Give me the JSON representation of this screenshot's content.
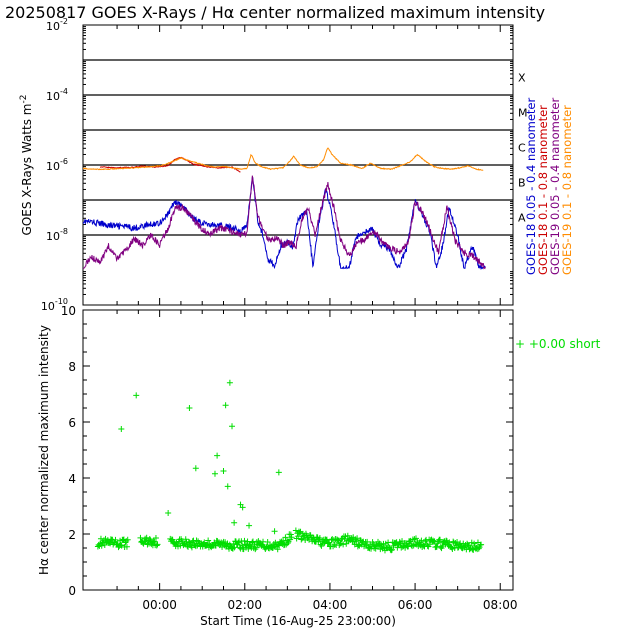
{
  "title": "20250817 GOES X-Rays / Hα center normalized maximum intensity",
  "chart_data": [
    {
      "type": "line",
      "ylabel": "GOES X-Rays Watts m",
      "ylabel_sup": "-2",
      "yscale": "log",
      "ylim": [
        1e-10,
        0.01
      ],
      "xlim": [
        -0.8,
        9.3
      ],
      "ytick_labels": [
        {
          "base": "10",
          "exp": "-10",
          "v": -10
        },
        {
          "base": "10",
          "exp": "-8",
          "v": -8
        },
        {
          "base": "10",
          "exp": "-6",
          "v": -6
        },
        {
          "base": "10",
          "exp": "-4",
          "v": -4
        },
        {
          "base": "10",
          "exp": "-2",
          "v": -2
        }
      ],
      "class_lines": [
        -8,
        -7,
        -6,
        -5,
        -4,
        -3
      ],
      "class_labels": [
        {
          "label": "A",
          "v": -7.5
        },
        {
          "label": "B",
          "v": -6.5
        },
        {
          "label": "C",
          "v": -5.5
        },
        {
          "label": "M",
          "v": -4.5
        },
        {
          "label": "X",
          "v": -3.5
        }
      ],
      "series": [
        {
          "name": "GOES-18 0.05 - 0.4 nanometer",
          "color": "#0000cc",
          "x": [
            -0.8,
            -0.5,
            -0.2,
            0.1,
            0.4,
            0.7,
            1.0,
            1.2,
            1.35,
            1.55,
            1.8,
            2.0,
            2.2,
            2.45,
            2.7,
            2.9,
            3.05,
            3.18,
            3.3,
            3.45,
            3.55,
            3.7,
            3.85,
            4.0,
            4.12,
            4.25,
            4.45,
            4.6,
            4.75,
            4.9,
            5.05,
            5.25,
            5.45,
            5.6,
            5.8,
            6.0,
            6.2,
            6.4,
            6.6,
            6.8,
            7.0,
            7.15,
            7.35,
            7.5,
            7.65,
            7.8,
            8.0,
            8.15,
            8.35,
            8.5,
            8.65
          ],
          "logy": [
            -7.6,
            -7.65,
            -7.72,
            -7.75,
            -7.8,
            -7.72,
            -7.65,
            -7.4,
            -7.05,
            -7.2,
            -7.55,
            -7.65,
            -7.7,
            -7.75,
            -7.78,
            -7.88,
            -7.75,
            -6.35,
            -7.55,
            -8.1,
            -8.7,
            -8.9,
            -8.3,
            -8.2,
            -8.35,
            -7.55,
            -7.3,
            -8.9,
            -7.6,
            -6.7,
            -7.4,
            -8.95,
            -8.95,
            -8.1,
            -7.9,
            -7.85,
            -8.3,
            -8.4,
            -8.95,
            -8.4,
            -7.0,
            -7.4,
            -7.9,
            -8.95,
            -8.3,
            -7.2,
            -8.0,
            -8.95,
            -8.3,
            -8.9,
            -8.95
          ]
        },
        {
          "name": "GOES-18 0.1 - 0.8 nanometer",
          "color": "#cc0000",
          "x": [
            -0.4,
            -0.2,
            0.0,
            0.3,
            0.6,
            0.9,
            1.2,
            1.35,
            1.5,
            1.65,
            1.8,
            2.1,
            2.4,
            2.7,
            2.9
          ],
          "logy": [
            -6.05,
            -6.07,
            -6.08,
            -6.07,
            -6.03,
            -6.06,
            -6.02,
            -5.85,
            -5.78,
            -5.88,
            -5.98,
            -6.05,
            -6.08,
            -6.06,
            -6.2
          ]
        },
        {
          "name": "GOES-19 0.05 - 0.4 nanometer",
          "color": "#800080",
          "x": [
            -0.8,
            -0.6,
            -0.4,
            -0.2,
            0.0,
            0.2,
            0.4,
            0.6,
            0.8,
            1.0,
            1.2,
            1.35,
            1.55,
            1.8,
            2.0,
            2.2,
            2.45,
            2.7,
            2.9,
            3.05,
            3.18,
            3.3,
            3.45,
            3.6,
            3.75,
            3.9,
            4.05,
            4.2,
            4.35,
            4.5,
            4.65,
            4.8,
            4.95,
            5.1,
            5.25,
            5.45,
            5.65,
            5.85,
            6.05,
            6.25,
            6.45,
            6.65,
            6.85,
            7.0,
            7.15,
            7.35,
            7.55,
            7.75,
            7.95,
            8.15,
            8.35,
            8.55,
            8.65
          ],
          "logy": [
            -8.95,
            -8.6,
            -8.8,
            -8.3,
            -8.7,
            -8.45,
            -8.1,
            -8.3,
            -8.0,
            -8.3,
            -7.8,
            -7.25,
            -7.2,
            -7.55,
            -7.85,
            -7.95,
            -7.8,
            -7.9,
            -8.0,
            -7.95,
            -6.3,
            -7.45,
            -7.95,
            -8.15,
            -8.05,
            -8.3,
            -8.2,
            -8.35,
            -7.5,
            -7.25,
            -8.0,
            -7.2,
            -6.55,
            -7.25,
            -8.15,
            -8.6,
            -8.2,
            -8.1,
            -7.9,
            -8.25,
            -8.4,
            -8.5,
            -8.2,
            -7.05,
            -7.3,
            -7.85,
            -8.5,
            -7.2,
            -8.2,
            -8.5,
            -8.6,
            -8.8,
            -8.9
          ]
        },
        {
          "name": "GOES-19 0.1 - 0.8 nanometer",
          "color": "#ff8c00",
          "x": [
            -0.8,
            -0.5,
            -0.2,
            0.1,
            0.4,
            0.8,
            1.1,
            1.3,
            1.5,
            1.7,
            1.9,
            2.1,
            2.3,
            2.5,
            2.7,
            2.9,
            3.05,
            3.15,
            3.25,
            3.4,
            3.6,
            3.75,
            3.9,
            4.05,
            4.15,
            4.3,
            4.5,
            4.7,
            4.85,
            4.95,
            5.05,
            5.25,
            5.5,
            5.75,
            5.95,
            6.2,
            6.45,
            6.7,
            6.9,
            7.05,
            7.25,
            7.45,
            7.65,
            7.85,
            8.05,
            8.25,
            8.45,
            8.6
          ],
          "logy": [
            -6.1,
            -6.12,
            -6.12,
            -6.1,
            -6.08,
            -6.05,
            -6.0,
            -5.9,
            -5.8,
            -5.88,
            -5.95,
            -6.02,
            -6.06,
            -6.04,
            -6.08,
            -6.12,
            -6.1,
            -5.7,
            -5.95,
            -6.05,
            -6.12,
            -6.1,
            -6.08,
            -5.9,
            -5.75,
            -6.0,
            -6.08,
            -6.05,
            -5.85,
            -5.5,
            -5.7,
            -5.95,
            -6.0,
            -6.1,
            -5.95,
            -6.1,
            -6.12,
            -6.0,
            -5.9,
            -5.7,
            -5.9,
            -6.05,
            -6.1,
            -6.12,
            -6.08,
            -6.02,
            -6.12,
            -6.15
          ]
        }
      ]
    },
    {
      "type": "scatter",
      "ylabel": "Hα center normalized maximum intensity",
      "xlabel": "Start Time (16-Aug-25 23:00:00)",
      "ylim": [
        0,
        10
      ],
      "xlim": [
        -0.8,
        9.3
      ],
      "y_ticks": [
        0,
        2,
        4,
        6,
        8,
        10
      ],
      "y_tick_labels": [
        "0",
        "2",
        "4",
        "6",
        "8",
        "10"
      ],
      "x_ticks": [
        1,
        3,
        5,
        7,
        9
      ],
      "x_tick_labels": [
        "00:00",
        "02:00",
        "04:00",
        "06:00",
        "08:00"
      ],
      "marker": "+",
      "color": "#00dd00",
      "legend": "+   +0.00 short",
      "outliers": {
        "x": [
          0.1,
          0.45,
          1.2,
          1.7,
          1.85,
          2.3,
          2.35,
          2.5,
          2.55,
          2.6,
          2.65,
          2.7,
          2.75,
          2.9,
          2.95,
          3.1,
          3.7,
          3.8
        ],
        "y": [
          5.75,
          6.95,
          2.75,
          6.5,
          4.35,
          4.15,
          4.8,
          4.25,
          6.6,
          3.7,
          7.4,
          5.85,
          2.4,
          3.05,
          2.95,
          2.3,
          2.1,
          4.2
        ]
      },
      "baseline": {
        "segments": [
          [
            -0.45,
            0.25
          ],
          [
            0.55,
            0.95
          ],
          [
            1.25,
            4.1
          ],
          [
            4.2,
            8.55
          ]
        ],
        "x": [
          -0.45,
          0.0,
          0.7,
          1.4,
          2.0,
          2.6,
          3.2,
          3.8,
          4.2,
          4.6,
          5.0,
          5.4,
          5.9,
          6.4,
          7.0,
          7.6,
          8.2,
          8.55
        ],
        "y": [
          1.7,
          1.65,
          1.75,
          1.7,
          1.65,
          1.62,
          1.6,
          1.6,
          2.0,
          1.8,
          1.65,
          1.8,
          1.6,
          1.55,
          1.7,
          1.65,
          1.55,
          1.55
        ]
      }
    }
  ]
}
